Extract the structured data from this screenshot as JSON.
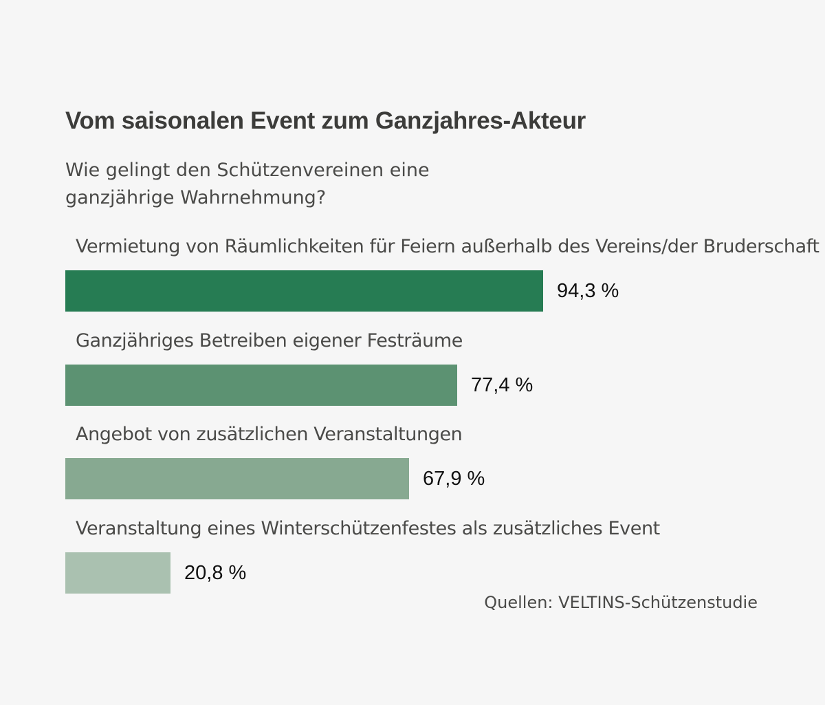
{
  "chart_data": {
    "type": "bar",
    "orientation": "horizontal",
    "title": "Vom saisonalen Event zum Ganzjahres-Akteur",
    "subtitle": "Wie gelingt den Schützenvereinen eine ganzjährige Wahrnehmung?",
    "categories": [
      "Vermietung von Räumlichkeiten für Feiern außerhalb des Vereins/der Bruderschaft",
      "Ganzjähriges Betreiben eigener Festräume",
      "Angebot von zusätzlichen Veranstaltungen",
      "Veranstaltung eines Winterschützenfestes als zusätzliches Event"
    ],
    "values": [
      94.3,
      77.4,
      67.9,
      20.8
    ],
    "value_labels": [
      "94,3 %",
      "77,4 %",
      "67,9 %",
      "20,8 %"
    ],
    "colors": [
      "#267c53",
      "#5c9272",
      "#87a991",
      "#aac1b0"
    ],
    "xlim": [
      0,
      100
    ],
    "unit": "%",
    "grid": false,
    "legend": "none",
    "source": "Quellen: VELTINS-Schützenstudie"
  },
  "background_color": "#f6f6f6"
}
